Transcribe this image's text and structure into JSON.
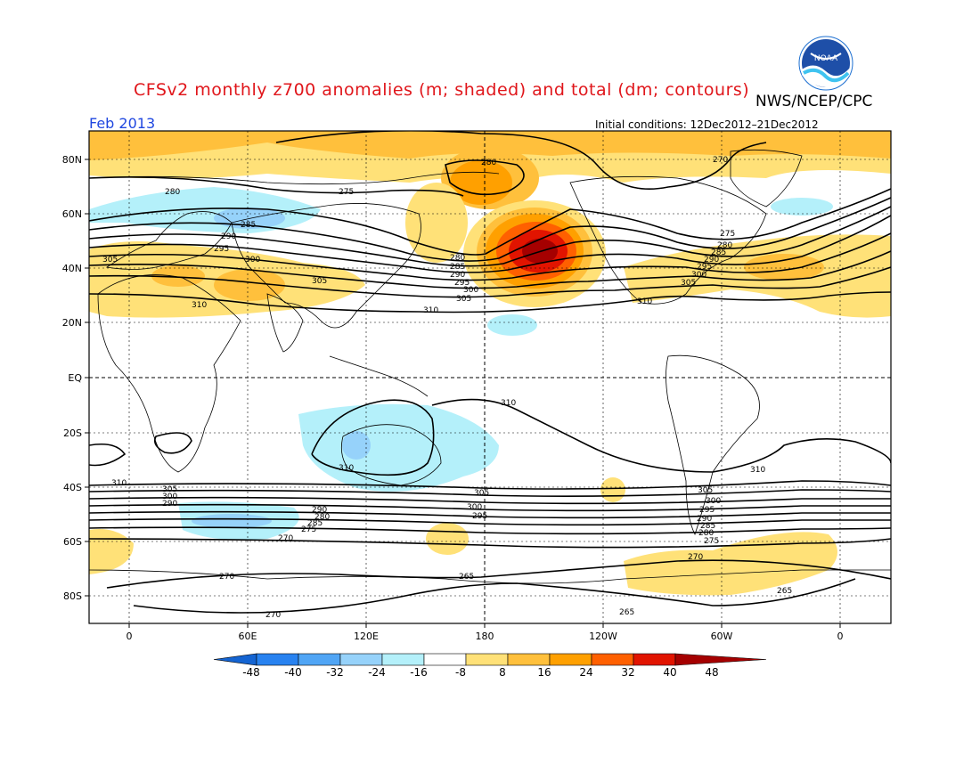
{
  "header": {
    "title": "CFSv2 monthly z700 anomalies (m; shaded) and total (dm; contours)",
    "org": "NWS/NCEP/CPC",
    "month": "Feb 2013",
    "initial_conditions": "Initial conditions: 12Dec2012–21Dec2012",
    "logo_text": "NOAA"
  },
  "axes": {
    "lat_ticks": [
      "80N",
      "60N",
      "40N",
      "20N",
      "EQ",
      "20S",
      "40S",
      "60S",
      "80S"
    ],
    "lon_ticks": [
      "0",
      "60E",
      "120E",
      "180",
      "120W",
      "60W",
      "0"
    ]
  },
  "colorbar": {
    "labels": [
      "-48",
      "-40",
      "-32",
      "-24",
      "-16",
      "-8",
      "8",
      "16",
      "24",
      "32",
      "40",
      "48"
    ],
    "colors": [
      "#1464d2",
      "#2882f0",
      "#50a5f5",
      "#96d2fa",
      "#b4f0fa",
      "#ffffff",
      "#ffe178",
      "#ffc03c",
      "#ffa000",
      "#ff6000",
      "#e11400",
      "#a50000"
    ]
  },
  "contour_labels": [
    "275",
    "280",
    "285",
    "290",
    "295",
    "300",
    "305",
    "310",
    "270",
    "265"
  ],
  "colors": {
    "title": "#e0161b",
    "month": "#1f47e0",
    "pos_light": "#ffe178",
    "pos_mid": "#ffc03c",
    "pos_strong": "#ffa000",
    "pos_red": "#ff6000",
    "pos_dark": "#e11400",
    "neg_light": "#b4f0fa",
    "neg_mid": "#96d2fa"
  }
}
